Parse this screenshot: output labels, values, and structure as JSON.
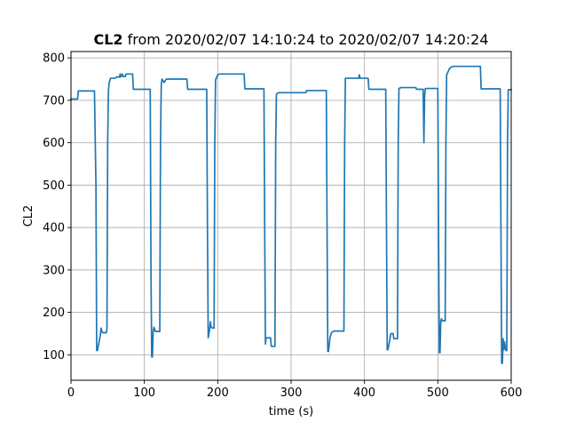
{
  "chart_data": {
    "type": "line",
    "title_bold": "CL2",
    "title_rest": " from 2020/02/07 14:10:24 to 2020/02/07 14:20:24",
    "xlabel": "time (s)",
    "ylabel": "CL2",
    "xlim": [
      0,
      600
    ],
    "ylim": [
      40,
      815
    ],
    "x_ticks": [
      0,
      100,
      200,
      300,
      400,
      500,
      600
    ],
    "x_tick_labels": [
      "0",
      "100",
      "200",
      "300",
      "400",
      "500",
      "600"
    ],
    "y_ticks": [
      100,
      200,
      300,
      400,
      500,
      600,
      700,
      800
    ],
    "y_tick_labels": [
      "100",
      "200",
      "300",
      "400",
      "500",
      "600",
      "700",
      "800"
    ],
    "grid": true,
    "color": "#1f77b4",
    "series": [
      {
        "points": [
          [
            0,
            703
          ],
          [
            9,
            703
          ],
          [
            10,
            722
          ],
          [
            32,
            722
          ],
          [
            34,
            500
          ],
          [
            35,
            110
          ],
          [
            36,
            110
          ],
          [
            38,
            128
          ],
          [
            40,
            147
          ],
          [
            41,
            163
          ],
          [
            42,
            156
          ],
          [
            43,
            152
          ],
          [
            48,
            152
          ],
          [
            49,
            160
          ],
          [
            50,
            600
          ],
          [
            51,
            720
          ],
          [
            52,
            742
          ],
          [
            54,
            752
          ],
          [
            60,
            752
          ],
          [
            62,
            755
          ],
          [
            66,
            755
          ],
          [
            67,
            762
          ],
          [
            68,
            755
          ],
          [
            70,
            762
          ],
          [
            71,
            756
          ],
          [
            74,
            756
          ],
          [
            75,
            762
          ],
          [
            84,
            762
          ],
          [
            85,
            726
          ],
          [
            108,
            726
          ],
          [
            109,
            300
          ],
          [
            110,
            95
          ],
          [
            111,
            95
          ],
          [
            112,
            155
          ],
          [
            113,
            165
          ],
          [
            115,
            155
          ],
          [
            121,
            155
          ],
          [
            122,
            600
          ],
          [
            123,
            735
          ],
          [
            124,
            750
          ],
          [
            127,
            742
          ],
          [
            129,
            748
          ],
          [
            130,
            750
          ],
          [
            158,
            750
          ],
          [
            159,
            726
          ],
          [
            185,
            726
          ],
          [
            186,
            400
          ],
          [
            187,
            140
          ],
          [
            188,
            150
          ],
          [
            189,
            160
          ],
          [
            190,
            178
          ],
          [
            191,
            165
          ],
          [
            193,
            163
          ],
          [
            195,
            163
          ],
          [
            196,
            600
          ],
          [
            197,
            748
          ],
          [
            200,
            760
          ],
          [
            202,
            762
          ],
          [
            236,
            762
          ],
          [
            237,
            727
          ],
          [
            263,
            727
          ],
          [
            264,
            400
          ],
          [
            265,
            125
          ],
          [
            266,
            140
          ],
          [
            272,
            140
          ],
          [
            273,
            120
          ],
          [
            278,
            120
          ],
          [
            279,
            600
          ],
          [
            280,
            715
          ],
          [
            283,
            718
          ],
          [
            320,
            718
          ],
          [
            321,
            723
          ],
          [
            348,
            723
          ],
          [
            349,
            400
          ],
          [
            350,
            108
          ],
          [
            351,
            108
          ],
          [
            353,
            140
          ],
          [
            355,
            152
          ],
          [
            358,
            156
          ],
          [
            372,
            156
          ],
          [
            373,
            600
          ],
          [
            374,
            752
          ],
          [
            392,
            752
          ],
          [
            393,
            760
          ],
          [
            394,
            752
          ],
          [
            405,
            752
          ],
          [
            406,
            726
          ],
          [
            429,
            726
          ],
          [
            430,
            400
          ],
          [
            431,
            112
          ],
          [
            432,
            112
          ],
          [
            434,
            130
          ],
          [
            436,
            150
          ],
          [
            439,
            150
          ],
          [
            440,
            138
          ],
          [
            445,
            138
          ],
          [
            446,
            600
          ],
          [
            447,
            728
          ],
          [
            450,
            730
          ],
          [
            470,
            730
          ],
          [
            471,
            726
          ],
          [
            480,
            726
          ],
          [
            481,
            600
          ],
          [
            482,
            710
          ],
          [
            483,
            728
          ],
          [
            500,
            728
          ],
          [
            501,
            400
          ],
          [
            502,
            105
          ],
          [
            503,
            105
          ],
          [
            504,
            178
          ],
          [
            505,
            185
          ],
          [
            506,
            180
          ],
          [
            510,
            180
          ],
          [
            511,
            600
          ],
          [
            512,
            760
          ],
          [
            516,
            775
          ],
          [
            520,
            780
          ],
          [
            558,
            780
          ],
          [
            559,
            727
          ],
          [
            585,
            727
          ],
          [
            586,
            400
          ],
          [
            587,
            80
          ],
          [
            588,
            80
          ],
          [
            589,
            138
          ],
          [
            590,
            112
          ],
          [
            591,
            130
          ],
          [
            592,
            115
          ],
          [
            593,
            110
          ],
          [
            594,
            110
          ],
          [
            595,
            600
          ],
          [
            596,
            725
          ],
          [
            600,
            725
          ]
        ]
      }
    ]
  }
}
